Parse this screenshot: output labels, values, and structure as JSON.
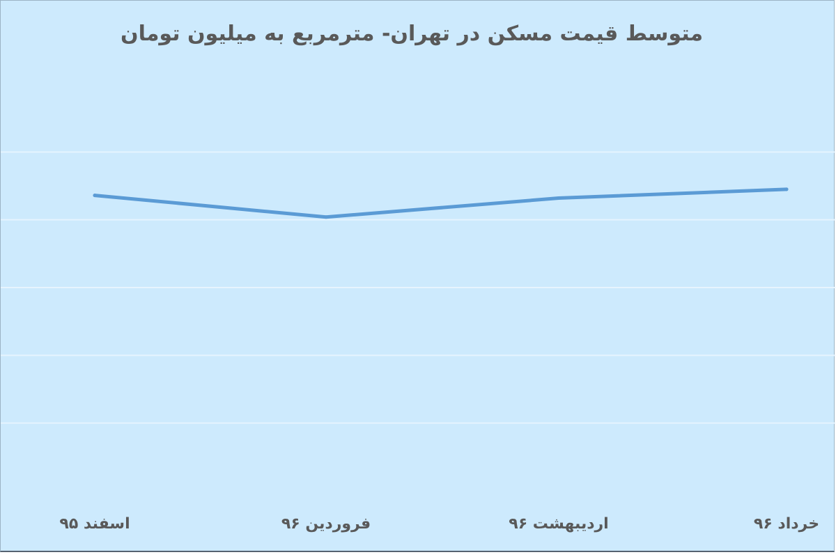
{
  "chart_data": {
    "type": "line",
    "title": "متوسط قیمت مسکن در تهران- مترمربع به میلیون تومان",
    "categories": [
      "اسفند ۹۵",
      "فروردین ۹۶",
      "اردیبهشت ۹۶",
      "خرداد ۹۶"
    ],
    "series": [
      {
        "values": [
          4.36,
          4.04,
          4.32,
          4.45
        ]
      }
    ],
    "ylim": [
      0,
      6
    ],
    "y_gridlines": [
      1,
      2,
      3,
      4,
      5
    ],
    "xlabel": "",
    "ylabel": "",
    "grid": true,
    "legend": "none",
    "line_color": "#5b9bd5",
    "gridline_color": "#e6f4fe",
    "background_color": "#cdeafd",
    "text_color": "#595959"
  }
}
